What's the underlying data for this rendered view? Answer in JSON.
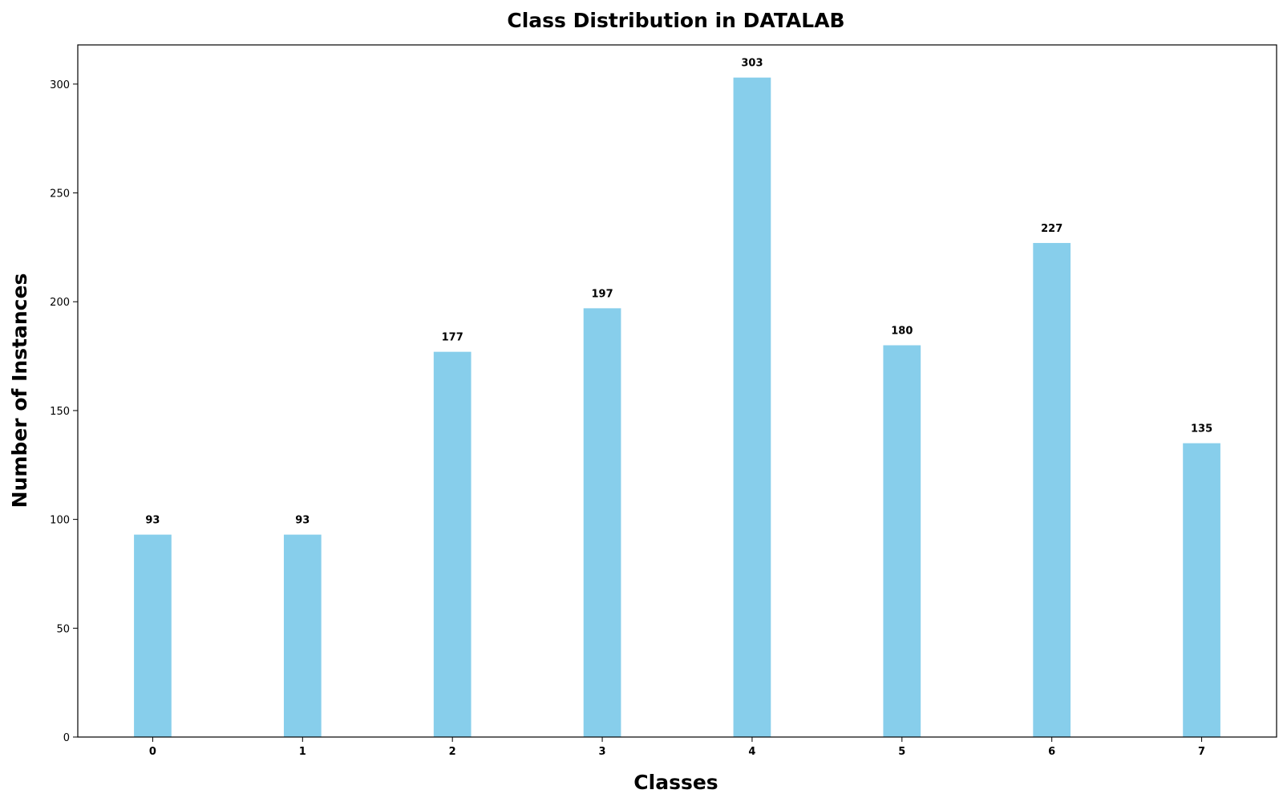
{
  "chart_data": {
    "type": "bar",
    "title": "Class Distribution in DATALAB",
    "xlabel": "Classes",
    "ylabel": "Number of Instances",
    "categories": [
      "0",
      "1",
      "2",
      "3",
      "4",
      "5",
      "6",
      "7"
    ],
    "values": [
      93,
      93,
      177,
      197,
      303,
      180,
      227,
      135
    ],
    "ylim": [
      0,
      318
    ],
    "yticks": [
      0,
      50,
      100,
      150,
      200,
      250,
      300
    ],
    "bar_color": "#87CEEB",
    "grid": false,
    "legend": "none",
    "data_labels": true
  }
}
